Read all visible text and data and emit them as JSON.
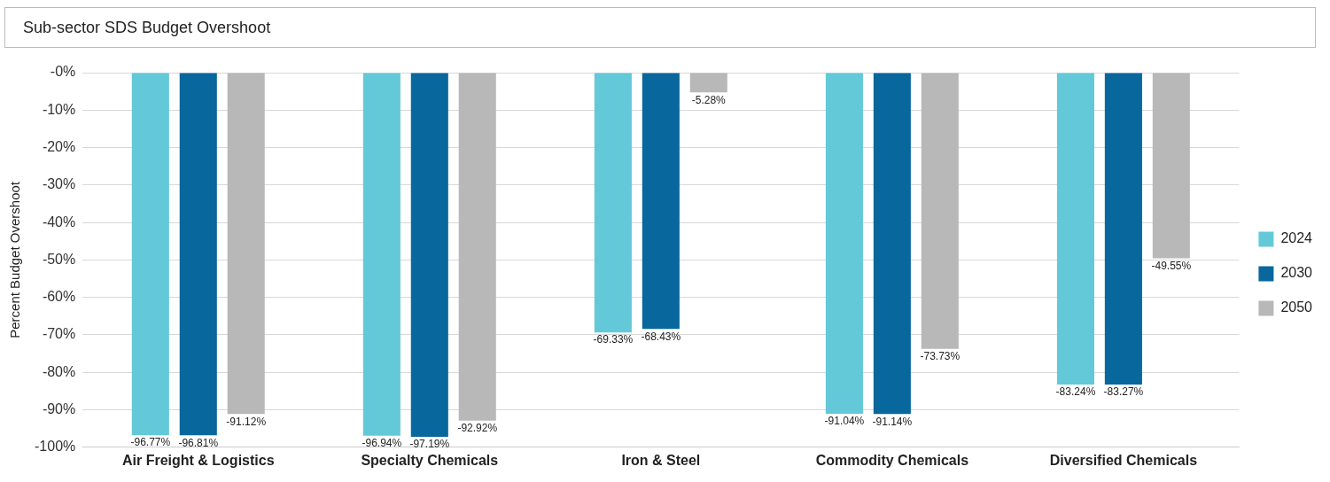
{
  "chart_data": {
    "type": "bar",
    "title": "Sub-sector SDS Budget Overshoot",
    "ylabel": "Percent Budget Overshoot",
    "categories": [
      "Air Freight & Logistics",
      "Specialty Chemicals",
      "Iron & Steel",
      "Commodity Chemicals",
      "Diversified Chemicals"
    ],
    "series": [
      {
        "name": "2024",
        "color": "#63c9d8",
        "values": [
          -96.77,
          -96.94,
          -69.33,
          -91.04,
          -83.24
        ],
        "value_labels": [
          "-96.77%",
          "-96.94%",
          "-69.33%",
          "-91.04%",
          "-83.24%"
        ]
      },
      {
        "name": "2030",
        "color": "#08679d",
        "values": [
          -96.81,
          -97.19,
          -68.43,
          -91.14,
          -83.27
        ],
        "value_labels": [
          "-96.81%",
          "-97.19%",
          "-68.43%",
          "-91.14%",
          "-83.27%"
        ]
      },
      {
        "name": "2050",
        "color": "#b8b8b8",
        "values": [
          -91.12,
          -92.92,
          -5.28,
          -73.73,
          -49.55
        ],
        "value_labels": [
          "-91.12%",
          "-92.92%",
          "-5.28%",
          "-73.73%",
          "-49.55%"
        ]
      }
    ],
    "ylim": [
      -100,
      0
    ],
    "yticks": [
      {
        "value": 0,
        "label": "-0%"
      },
      {
        "value": -10,
        "label": "-10%"
      },
      {
        "value": -20,
        "label": "-20%"
      },
      {
        "value": -30,
        "label": "-30%"
      },
      {
        "value": -40,
        "label": "-40%"
      },
      {
        "value": -50,
        "label": "-50%"
      },
      {
        "value": -60,
        "label": "-60%"
      },
      {
        "value": -70,
        "label": "-70%"
      },
      {
        "value": -80,
        "label": "-80%"
      },
      {
        "value": -90,
        "label": "-90%"
      },
      {
        "value": -100,
        "label": "-100%"
      }
    ],
    "grid": "y",
    "legend": "right"
  }
}
